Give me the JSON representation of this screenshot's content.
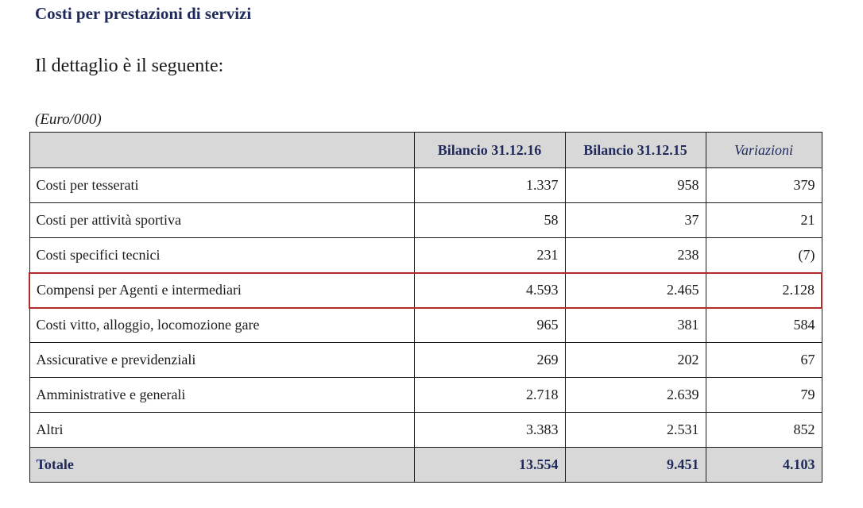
{
  "heading": "Costi per prestazioni di servizi",
  "intro": "Il dettaglio è il seguente:",
  "unit": "(Euro/000)",
  "table": {
    "headers": [
      "",
      "Bilancio 31.12.16",
      "Bilancio 31.12.15",
      "Variazioni"
    ],
    "rows": [
      {
        "label": "Costi per tesserati",
        "v2016": "1.337",
        "v2015": "958",
        "var": "379"
      },
      {
        "label": "Costi per attività sportiva",
        "v2016": "58",
        "v2015": "37",
        "var": "21"
      },
      {
        "label": "Costi specifici tecnici",
        "v2016": "231",
        "v2015": "238",
        "var": "(7)"
      },
      {
        "label": "Compensi per Agenti e intermediari",
        "v2016": "4.593",
        "v2015": "2.465",
        "var": "2.128"
      },
      {
        "label": "Costi vitto, alloggio, locomozione gare",
        "v2016": "965",
        "v2015": "381",
        "var": "584"
      },
      {
        "label": "Assicurative e previdenziali",
        "v2016": "269",
        "v2015": "202",
        "var": "67"
      },
      {
        "label": "Amministrative e generali",
        "v2016": "2.718",
        "v2015": "2.639",
        "var": "79"
      },
      {
        "label": "Altri",
        "v2016": "3.383",
        "v2015": "2.531",
        "var": "852"
      }
    ],
    "total": {
      "label": "Totale",
      "v2016": "13.554",
      "v2015": "9.451",
      "var": "4.103"
    }
  },
  "colors": {
    "header_bg": "#d8d8d8",
    "heading_text": "#1f2a5a",
    "highlight_border": "#b22a2a"
  }
}
